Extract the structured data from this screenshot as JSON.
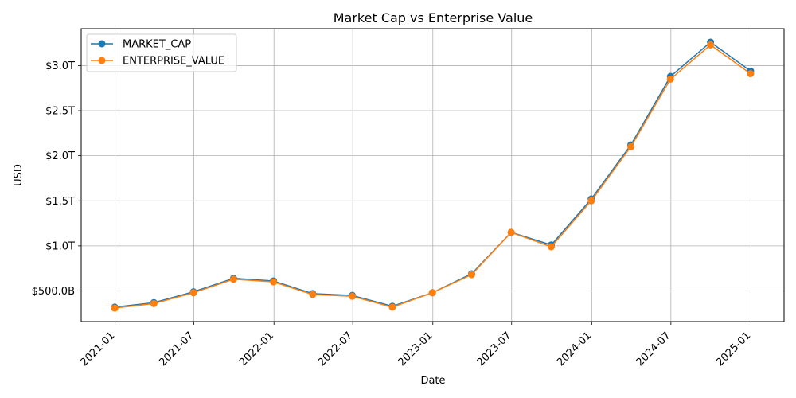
{
  "chart_data": {
    "type": "line",
    "title": "Market Cap vs Enterprise Value",
    "xlabel": "Date",
    "ylabel": "USD",
    "x": [
      "2020-12-31",
      "2021-03-31",
      "2021-06-30",
      "2021-09-30",
      "2021-12-31",
      "2022-03-31",
      "2022-06-30",
      "2022-09-30",
      "2022-12-31",
      "2023-03-31",
      "2023-06-30",
      "2023-09-30",
      "2023-12-31",
      "2024-03-31",
      "2024-06-30",
      "2024-09-30",
      "2024-12-31"
    ],
    "series": [
      {
        "name": "MARKET_CAP",
        "color": "#1f77b4",
        "values": [
          320000000000.0,
          370000000000.0,
          490000000000.0,
          640000000000.0,
          610000000000.0,
          470000000000.0,
          450000000000.0,
          330000000000.0,
          480000000000.0,
          690000000000.0,
          1150000000000.0,
          1010000000000.0,
          1520000000000.0,
          2120000000000.0,
          2880000000000.0,
          3260000000000.0,
          2940000000000.0
        ]
      },
      {
        "name": "ENTERPRISE_VALUE",
        "color": "#ff7f0e",
        "values": [
          310000000000.0,
          360000000000.0,
          480000000000.0,
          630000000000.0,
          600000000000.0,
          460000000000.0,
          440000000000.0,
          320000000000.0,
          480000000000.0,
          680000000000.0,
          1150000000000.0,
          990000000000.0,
          1500000000000.0,
          2100000000000.0,
          2850000000000.0,
          3230000000000.0,
          2910000000000.0
        ]
      }
    ],
    "ylim": [
      160000000000.0,
      3410000000000.0
    ],
    "xlim": [
      "2020-10-15",
      "2025-03-18"
    ],
    "y_ticks": [
      {
        "value": 500000000000.0,
        "label": "$500.0B"
      },
      {
        "value": 1000000000000.0,
        "label": "$1.0T"
      },
      {
        "value": 1500000000000.0,
        "label": "$1.5T"
      },
      {
        "value": 2000000000000.0,
        "label": "$2.0T"
      },
      {
        "value": 2500000000000.0,
        "label": "$2.5T"
      },
      {
        "value": 3000000000000.0,
        "label": "$3.0T"
      }
    ],
    "x_ticks": [
      {
        "value": "2021-01-01",
        "label": "2021-01"
      },
      {
        "value": "2021-07-01",
        "label": "2021-07"
      },
      {
        "value": "2022-01-01",
        "label": "2022-01"
      },
      {
        "value": "2022-07-01",
        "label": "2022-07"
      },
      {
        "value": "2023-01-01",
        "label": "2023-01"
      },
      {
        "value": "2023-07-01",
        "label": "2023-07"
      },
      {
        "value": "2024-01-01",
        "label": "2024-01"
      },
      {
        "value": "2024-07-01",
        "label": "2024-07"
      },
      {
        "value": "2025-01-01",
        "label": "2025-01"
      }
    ],
    "grid": true,
    "legend": "upper-left",
    "marker": "circle"
  }
}
